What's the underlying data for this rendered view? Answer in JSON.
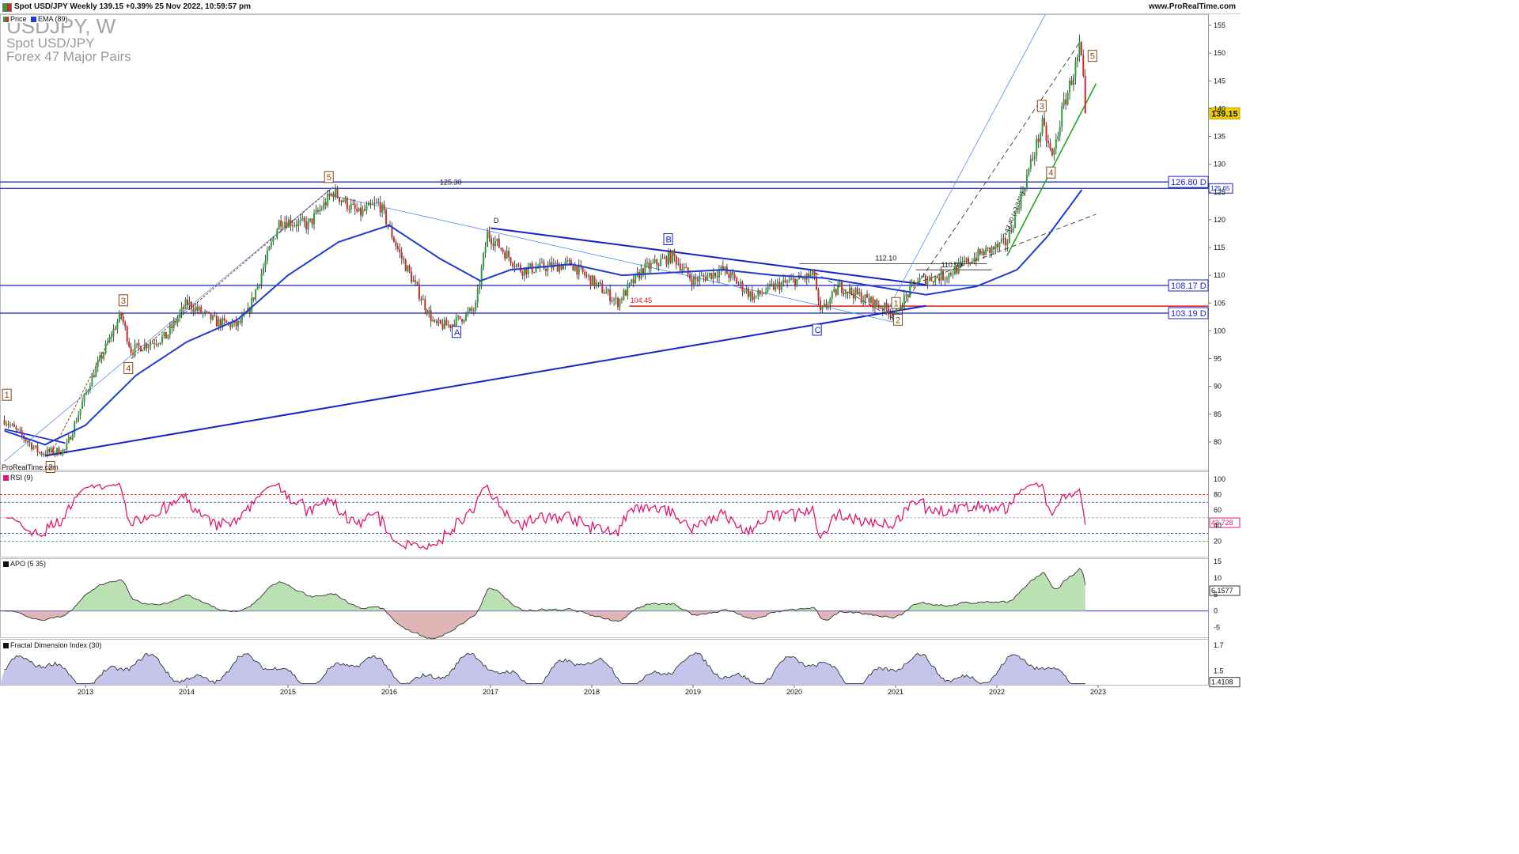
{
  "header": {
    "title": "Spot USD/JPY Weekly 139.15 +0.39% 25 Nov 2022, 10:59:57 pm",
    "site": "www.ProRealTime.com"
  },
  "watermark": {
    "symbol": "USDJPY, W",
    "name": "Spot USD/JPY",
    "group": "Forex 47 Major Pairs"
  },
  "legend": {
    "price": "Price",
    "ema": "EMA (89)",
    "rsi": "RSI (9)",
    "apo": "APO (5 35)",
    "fdi": "Fractal Dimension Index (30)"
  },
  "footer_brand": "ProRealTime.com",
  "colors": {
    "up": "#2e9e3a",
    "down": "#cf2a2a",
    "ema": "#1f3ccf",
    "trend": "#1722c8",
    "rsi": "#e0186f",
    "apo_pos": "#a9d8a0",
    "apo_neg": "#d7a3a3",
    "fdi_fill": "#b7b7e6",
    "green_line": "#22a822",
    "level_red": "#e0191b"
  },
  "chart_data": [
    {
      "type": "candlestick",
      "panel": "price",
      "x_ticks": [
        "2013",
        "2014",
        "2015",
        "2016",
        "2017",
        "2018",
        "2019",
        "2020",
        "2021",
        "2022",
        "2023"
      ],
      "y_ticks": [
        "80",
        "85",
        "90",
        "95",
        "100",
        "105",
        "110",
        "115",
        "120",
        "125",
        "130",
        "135",
        "140",
        "145",
        "150",
        "155"
      ],
      "ylim": [
        75,
        157
      ],
      "last_price": "139.15",
      "approx_path": [
        [
          2012.2,
          84
        ],
        [
          2012.55,
          78
        ],
        [
          2012.8,
          78.5
        ],
        [
          2013.05,
          91
        ],
        [
          2013.35,
          103
        ],
        [
          2013.45,
          96.5
        ],
        [
          2013.8,
          99
        ],
        [
          2014.0,
          105
        ],
        [
          2014.3,
          101.5
        ],
        [
          2014.5,
          101
        ],
        [
          2014.6,
          103
        ],
        [
          2014.92,
          120
        ],
        [
          2015.2,
          119
        ],
        [
          2015.45,
          125
        ],
        [
          2015.7,
          121
        ],
        [
          2015.9,
          123
        ],
        [
          2016.1,
          114
        ],
        [
          2016.45,
          101
        ],
        [
          2016.6,
          101
        ],
        [
          2016.85,
          104
        ],
        [
          2016.97,
          117.5
        ],
        [
          2017.3,
          111
        ],
        [
          2017.8,
          112
        ],
        [
          2018.2,
          106
        ],
        [
          2018.25,
          105
        ],
        [
          2018.5,
          111
        ],
        [
          2018.8,
          113.5
        ],
        [
          2019.0,
          109
        ],
        [
          2019.3,
          111
        ],
        [
          2019.6,
          106
        ],
        [
          2019.8,
          108
        ],
        [
          2020.2,
          110
        ],
        [
          2020.25,
          103
        ],
        [
          2020.45,
          108
        ],
        [
          2020.9,
          104
        ],
        [
          2021.0,
          103.2
        ],
        [
          2021.2,
          109
        ],
        [
          2021.5,
          110
        ],
        [
          2021.85,
          114
        ],
        [
          2022.0,
          115
        ],
        [
          2022.1,
          116
        ],
        [
          2022.3,
          128
        ],
        [
          2022.45,
          137
        ],
        [
          2022.55,
          131
        ],
        [
          2022.65,
          140
        ],
        [
          2022.8,
          149
        ],
        [
          2022.82,
          151.5
        ],
        [
          2022.88,
          139.15
        ]
      ],
      "ema_approx": [
        [
          2012.2,
          82
        ],
        [
          2012.6,
          79.5
        ],
        [
          2013.0,
          83
        ],
        [
          2013.5,
          92
        ],
        [
          2014.0,
          98
        ],
        [
          2014.5,
          102
        ],
        [
          2015.0,
          110
        ],
        [
          2015.5,
          116
        ],
        [
          2016.0,
          119
        ],
        [
          2016.5,
          113
        ],
        [
          2016.9,
          109
        ],
        [
          2017.2,
          111
        ],
        [
          2017.8,
          112
        ],
        [
          2018.3,
          110
        ],
        [
          2018.8,
          110.5
        ],
        [
          2019.3,
          111
        ],
        [
          2019.8,
          110
        ],
        [
          2020.3,
          109.5
        ],
        [
          2020.8,
          108
        ],
        [
          2021.3,
          106.5
        ],
        [
          2021.8,
          108
        ],
        [
          2022.2,
          111
        ],
        [
          2022.5,
          117
        ],
        [
          2022.85,
          125.65
        ]
      ]
    },
    {
      "type": "line",
      "panel": "rsi",
      "name": "RSI (9)",
      "y_ticks": [
        "20",
        "40",
        "60",
        "80",
        "100"
      ],
      "ylim": [
        0,
        110
      ],
      "last_value": "43.728"
    },
    {
      "type": "area",
      "panel": "apo",
      "name": "APO (5 35)",
      "y_ticks": [
        "-5",
        "0",
        "5",
        "10",
        "15"
      ],
      "ylim": [
        -8,
        16
      ],
      "last_value": "6.1577"
    },
    {
      "type": "area",
      "panel": "fdi",
      "name": "Fractal Dimension Index (30)",
      "y_ticks": [
        "1.5",
        "1.7"
      ],
      "ylim": [
        1.39,
        1.75
      ],
      "last_value": "1.4108"
    }
  ],
  "levels": [
    {
      "value": "126.80 D",
      "price": 126.8,
      "color": "#1722c8"
    },
    {
      "value": "125.65",
      "price": 125.65,
      "color": "#1722c8"
    },
    {
      "value": "108.17 D",
      "price": 108.17,
      "color": "#1722c8"
    },
    {
      "value": "103.19 D",
      "price": 103.19,
      "color": "#1722c8"
    }
  ],
  "annotations": {
    "level_125": "125.30",
    "level_112": "112.10",
    "level_110": "110.99",
    "level_104": "104.45",
    "slope_label": "+42.40 (+2.34%)",
    "point_d": "D",
    "waves": [
      "1",
      "2",
      "3",
      "4",
      "5",
      "A",
      "B",
      "C",
      "1",
      "2",
      "3",
      "4",
      "5"
    ]
  }
}
